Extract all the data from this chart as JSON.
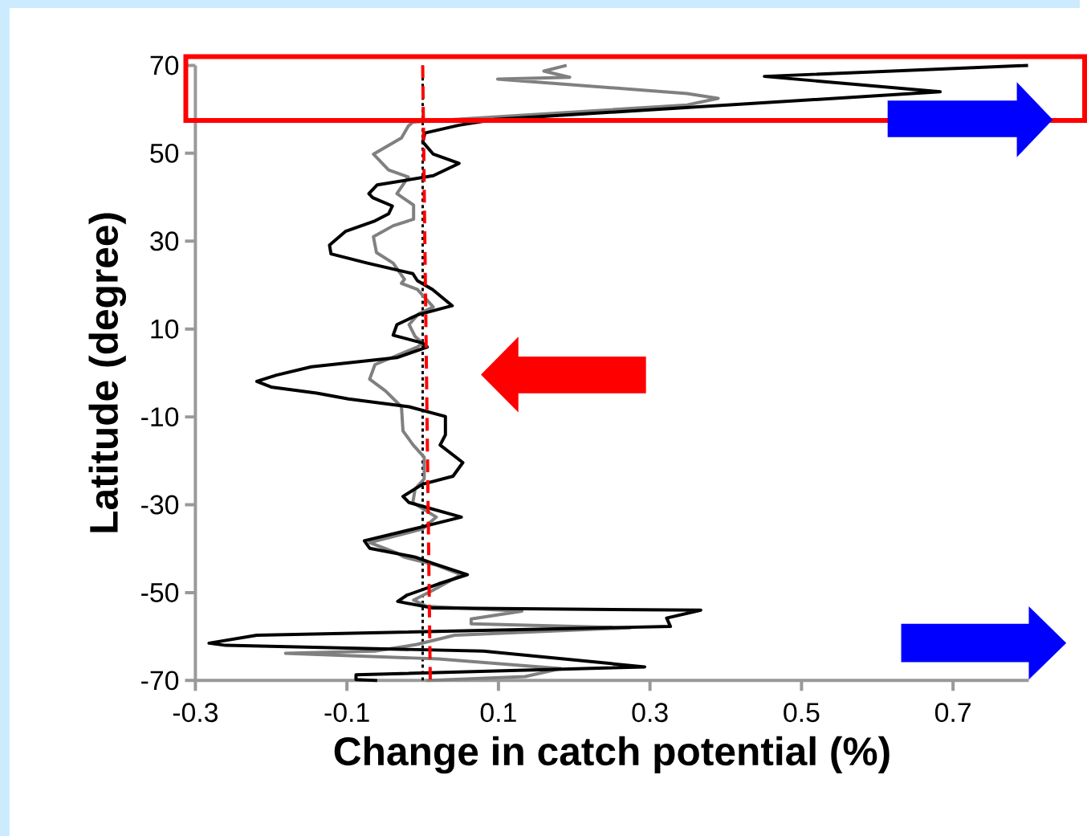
{
  "chart_data": {
    "type": "line",
    "xlabel": "Change in catch potential (%)",
    "ylabel": "Latitude (degree)",
    "xlim": [
      -0.3,
      0.8
    ],
    "ylim": [
      -70,
      70
    ],
    "xticks": [
      -0.3,
      -0.1,
      0.1,
      0.3,
      0.5,
      0.7
    ],
    "yticks": [
      70,
      50,
      30,
      10,
      -10,
      -30,
      -50,
      -70
    ],
    "grid": false,
    "ref_lines": [
      {
        "axis": "x",
        "value": 0.0,
        "color": "#000000",
        "line_style": "dotted"
      }
    ],
    "series": [
      {
        "color": "#808080",
        "x": [
          0.19,
          0.16,
          0.194,
          0.099,
          0.349,
          0.39,
          0.349,
          -0.013,
          -0.019,
          -0.028,
          -0.065,
          -0.045,
          -0.019,
          -0.034,
          -0.012,
          -0.012,
          -0.039,
          -0.065,
          -0.061,
          -0.039,
          -0.024,
          -0.028,
          -0.007,
          0.014,
          -0.005,
          -0.018,
          -0.01,
          0.0,
          -0.007,
          -0.063,
          -0.07,
          -0.049,
          -0.028,
          -0.026,
          -0.013,
          0.002,
          0.002,
          -0.01,
          -0.013,
          0.018,
          0.0,
          -0.07,
          -0.034,
          -0.025,
          0.017,
          0.051,
          0.013,
          -0.012,
          0.005,
          0.131,
          0.064,
          0.064,
          0.274,
          0.042,
          -0.008,
          -0.063,
          -0.181,
          0.021,
          0.182,
          0.135,
          0.005
        ],
        "values": [
          70,
          68.7,
          67.3,
          66.9,
          63.6,
          62.5,
          61,
          57.1,
          56.2,
          53.5,
          49.8,
          46.2,
          44.6,
          40.8,
          38.2,
          35,
          33.5,
          31,
          27.4,
          25,
          21.3,
          20.4,
          19,
          15,
          13.5,
          11,
          8.3,
          6.8,
          5.9,
          1.9,
          -1.4,
          -4.1,
          -7.7,
          -13.2,
          -16.3,
          -19.2,
          -24.1,
          -26.4,
          -29.5,
          -32.8,
          -35.5,
          -38.6,
          -41,
          -41.9,
          -43.7,
          -45.9,
          -49.5,
          -51.7,
          -53.1,
          -54.2,
          -56,
          -57.1,
          -58,
          -59.7,
          -61.8,
          -63.3,
          -63.8,
          -65.1,
          -67.3,
          -69.1,
          -70
        ]
      },
      {
        "color": "#000000",
        "x": [
          0.799,
          0.451,
          0.683,
          0.095,
          0.048,
          0.003,
          0.0,
          0.014,
          0.048,
          0.014,
          -0.06,
          -0.071,
          -0.066,
          -0.04,
          -0.045,
          -0.063,
          -0.102,
          -0.123,
          -0.121,
          -0.073,
          -0.013,
          -0.007,
          0.013,
          0.039,
          -0.007,
          -0.034,
          -0.039,
          0.0,
          0.006,
          -0.034,
          -0.147,
          -0.193,
          -0.219,
          -0.2,
          -0.14,
          -0.098,
          -0.018,
          0.03,
          0.03,
          0.023,
          0.053,
          0.04,
          0.0,
          -0.026,
          -0.018,
          0.051,
          0.0,
          -0.077,
          -0.07,
          -0.01,
          0.013,
          0.059,
          0.021,
          -0.021,
          -0.033,
          0.013,
          0.367,
          0.322,
          0.327,
          -0.219,
          -0.282,
          -0.26,
          0.08,
          0.293,
          -0.088,
          -0.088,
          -0.06
        ],
        "values": [
          70,
          67.5,
          64,
          57.7,
          56.4,
          54.6,
          52.6,
          49.8,
          47.7,
          44.9,
          42.8,
          40.8,
          39.9,
          38,
          36.2,
          34.6,
          32.2,
          29.1,
          27.1,
          25,
          22.6,
          21,
          19,
          15.3,
          13.2,
          11,
          8.6,
          6.8,
          5.9,
          3.5,
          1.4,
          -0.5,
          -1.9,
          -3.2,
          -4.6,
          -5.9,
          -7.7,
          -9.9,
          -14.1,
          -16.4,
          -20.4,
          -23.5,
          -25.3,
          -28.1,
          -29.5,
          -32.8,
          -35,
          -38.2,
          -39.9,
          -41.9,
          -43.3,
          -45.9,
          -48,
          -50.6,
          -52,
          -53.5,
          -54,
          -55.8,
          -57.7,
          -59.7,
          -61.5,
          -62,
          -63.3,
          -66.9,
          -68.7,
          -69.8,
          -70
        ]
      },
      {
        "color": "#ff0000",
        "line_style": "dashed",
        "x": [
          0.0,
          0.01
        ],
        "values": [
          70,
          -70
        ]
      }
    ]
  }
}
